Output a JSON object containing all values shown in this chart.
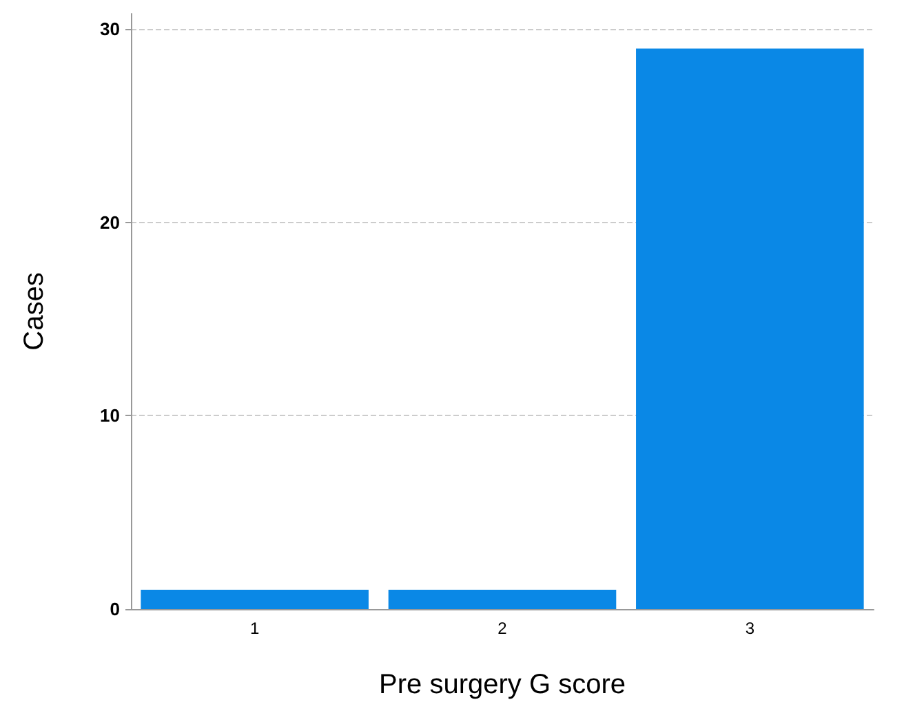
{
  "chart_data": {
    "type": "bar",
    "xlabel": "Pre surgery G score",
    "ylabel": "Cases",
    "categories": [
      "1",
      "2",
      "3"
    ],
    "values": [
      1,
      1,
      29
    ],
    "color": "#0a88e6",
    "ylim": [
      0,
      30.8
    ],
    "yticks": [
      0,
      10,
      20,
      30
    ],
    "grid": "y"
  }
}
